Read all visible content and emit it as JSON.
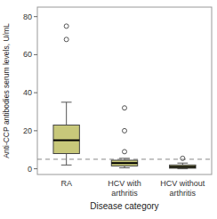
{
  "chart_data": {
    "type": "box",
    "title": "",
    "xlabel": "Disease category",
    "ylabel": "Anti-CCP antibodies serum levels, U/mL",
    "categories": [
      "RA",
      "HCV with arthritis",
      "HCV without arthritis"
    ],
    "boxes": [
      {
        "q1": 8,
        "median": 15,
        "q3": 23,
        "whisker_low": 2,
        "whisker_high": 35,
        "outliers": [
          68,
          75
        ]
      },
      {
        "q1": 1.5,
        "median": 3,
        "q3": 4.5,
        "whisker_low": 0.5,
        "whisker_high": 5.5,
        "outliers": [
          9,
          20,
          32
        ]
      },
      {
        "q1": 0.3,
        "median": 1,
        "q3": 2,
        "whisker_low": 0,
        "whisker_high": 3,
        "outliers": [
          5.5
        ]
      }
    ],
    "color": "#c8c87a",
    "reference_line": 5,
    "ylim": [
      -3,
      85
    ],
    "yticks": [
      0,
      20,
      40,
      60,
      80
    ],
    "grid": false
  }
}
